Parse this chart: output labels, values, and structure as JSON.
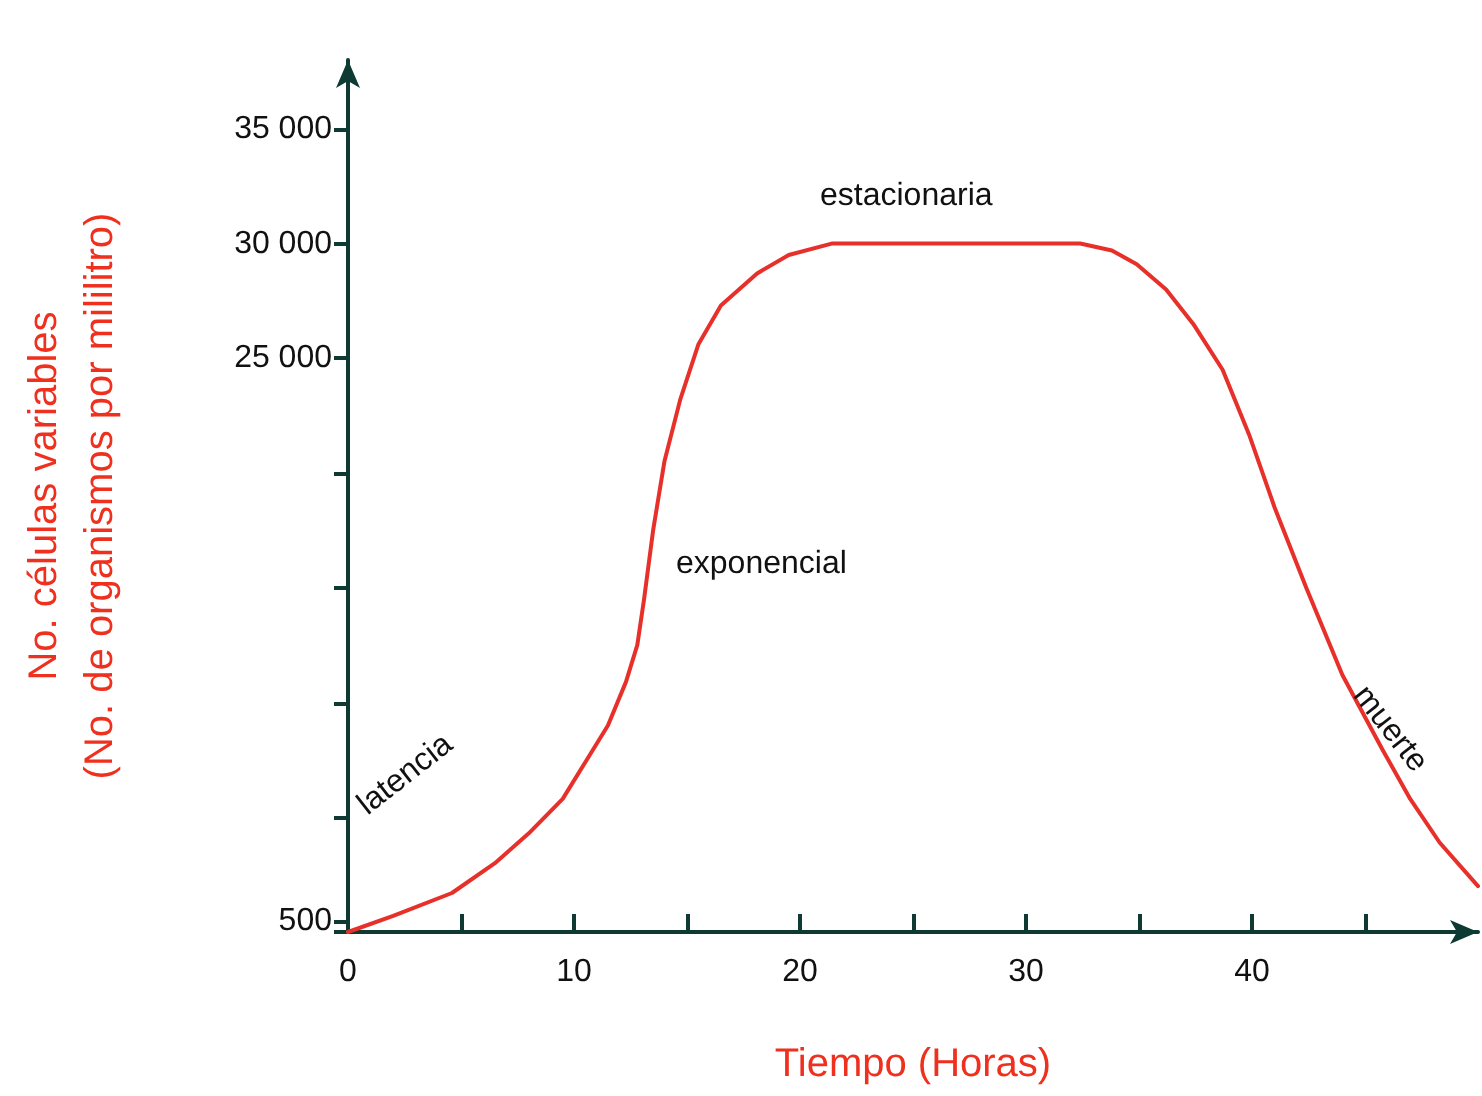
{
  "chart_data": {
    "type": "line",
    "xlabel": "Tiempo (Horas)",
    "ylabel": "No. células variables\n(No. de organismos por mililitro)",
    "x": [
      0,
      2,
      4.6,
      6.5,
      8,
      9.5,
      10.5,
      11.5,
      12.3,
      12.8,
      13.1,
      13.5,
      14,
      14.7,
      15.5,
      16.5,
      18.1,
      19.5,
      21.4,
      24.8,
      28,
      32.4,
      33.8,
      34.9,
      36.2,
      37.4,
      38.7,
      39.9,
      41,
      42.4,
      44,
      45.8,
      47,
      48.3,
      50
    ],
    "series": [
      {
        "color": "#e8302a",
        "values": [
          0,
          700,
          1700,
          3000,
          4300,
          5800,
          7400,
          9000,
          10900,
          12500,
          14500,
          17500,
          20500,
          23200,
          25600,
          27300,
          28700,
          29500,
          30000,
          30000,
          30000,
          30000,
          29700,
          29100,
          28000,
          26500,
          24500,
          21600,
          18500,
          15000,
          11200,
          7900,
          5800,
          3900,
          2000
        ]
      }
    ],
    "xlim": [
      0,
      50
    ],
    "xticks": [
      0,
      {
        "value": 5,
        "label": null
      },
      10,
      {
        "value": 15,
        "label": null
      },
      20,
      {
        "value": 25,
        "label": null
      },
      30,
      {
        "value": 35,
        "label": null
      },
      40,
      {
        "value": 45,
        "label": null
      }
    ],
    "ylim": [
      0,
      38000
    ],
    "yticks": [
      {
        "value": 0,
        "label": null
      },
      500,
      {
        "value": 5000,
        "label": null
      },
      {
        "value": 10000,
        "label": null
      },
      {
        "value": 15000,
        "label": null
      },
      {
        "value": 20000,
        "label": null
      },
      {
        "value": 25000,
        "label": "25 000"
      },
      {
        "value": 30000,
        "label": "30 000"
      },
      {
        "value": 35000,
        "label": "35 000"
      }
    ],
    "annotations": [
      "latencia",
      "exponencial",
      "estacionaria",
      "muerte"
    ],
    "marker": "none",
    "line_style": "solid"
  }
}
